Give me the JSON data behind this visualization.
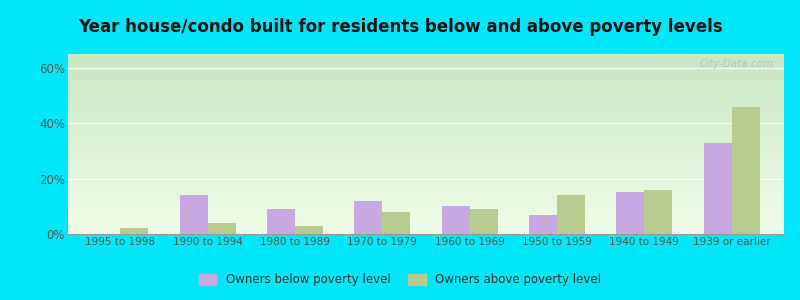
{
  "categories": [
    "1995 to 1998",
    "1990 to 1994",
    "1980 to 1989",
    "1970 to 1979",
    "1960 to 1969",
    "1950 to 1959",
    "1940 to 1949",
    "1939 or earlier"
  ],
  "below_poverty": [
    0.0,
    14.0,
    9.0,
    12.0,
    10.0,
    7.0,
    15.0,
    33.0
  ],
  "above_poverty": [
    2.0,
    4.0,
    3.0,
    8.0,
    9.0,
    14.0,
    16.0,
    46.0
  ],
  "below_color": "#c8a8e0",
  "above_color": "#b8cc90",
  "title": "Year house/condo built for residents below and above poverty levels",
  "title_fontsize": 12,
  "ylabel_ticks": [
    "0%",
    "20%",
    "40%",
    "60%"
  ],
  "yticks": [
    0,
    20,
    40,
    60
  ],
  "ylim": [
    0,
    65
  ],
  "legend_below": "Owners below poverty level",
  "legend_above": "Owners above poverty level",
  "bg_top": "#c8e8c0",
  "bg_bottom": "#f0fce8",
  "outer_bg": "#00e8f8",
  "bar_width": 0.32,
  "watermark": "City-Data.com",
  "tick_fontsize": 7.5,
  "legend_fontsize": 8.5
}
